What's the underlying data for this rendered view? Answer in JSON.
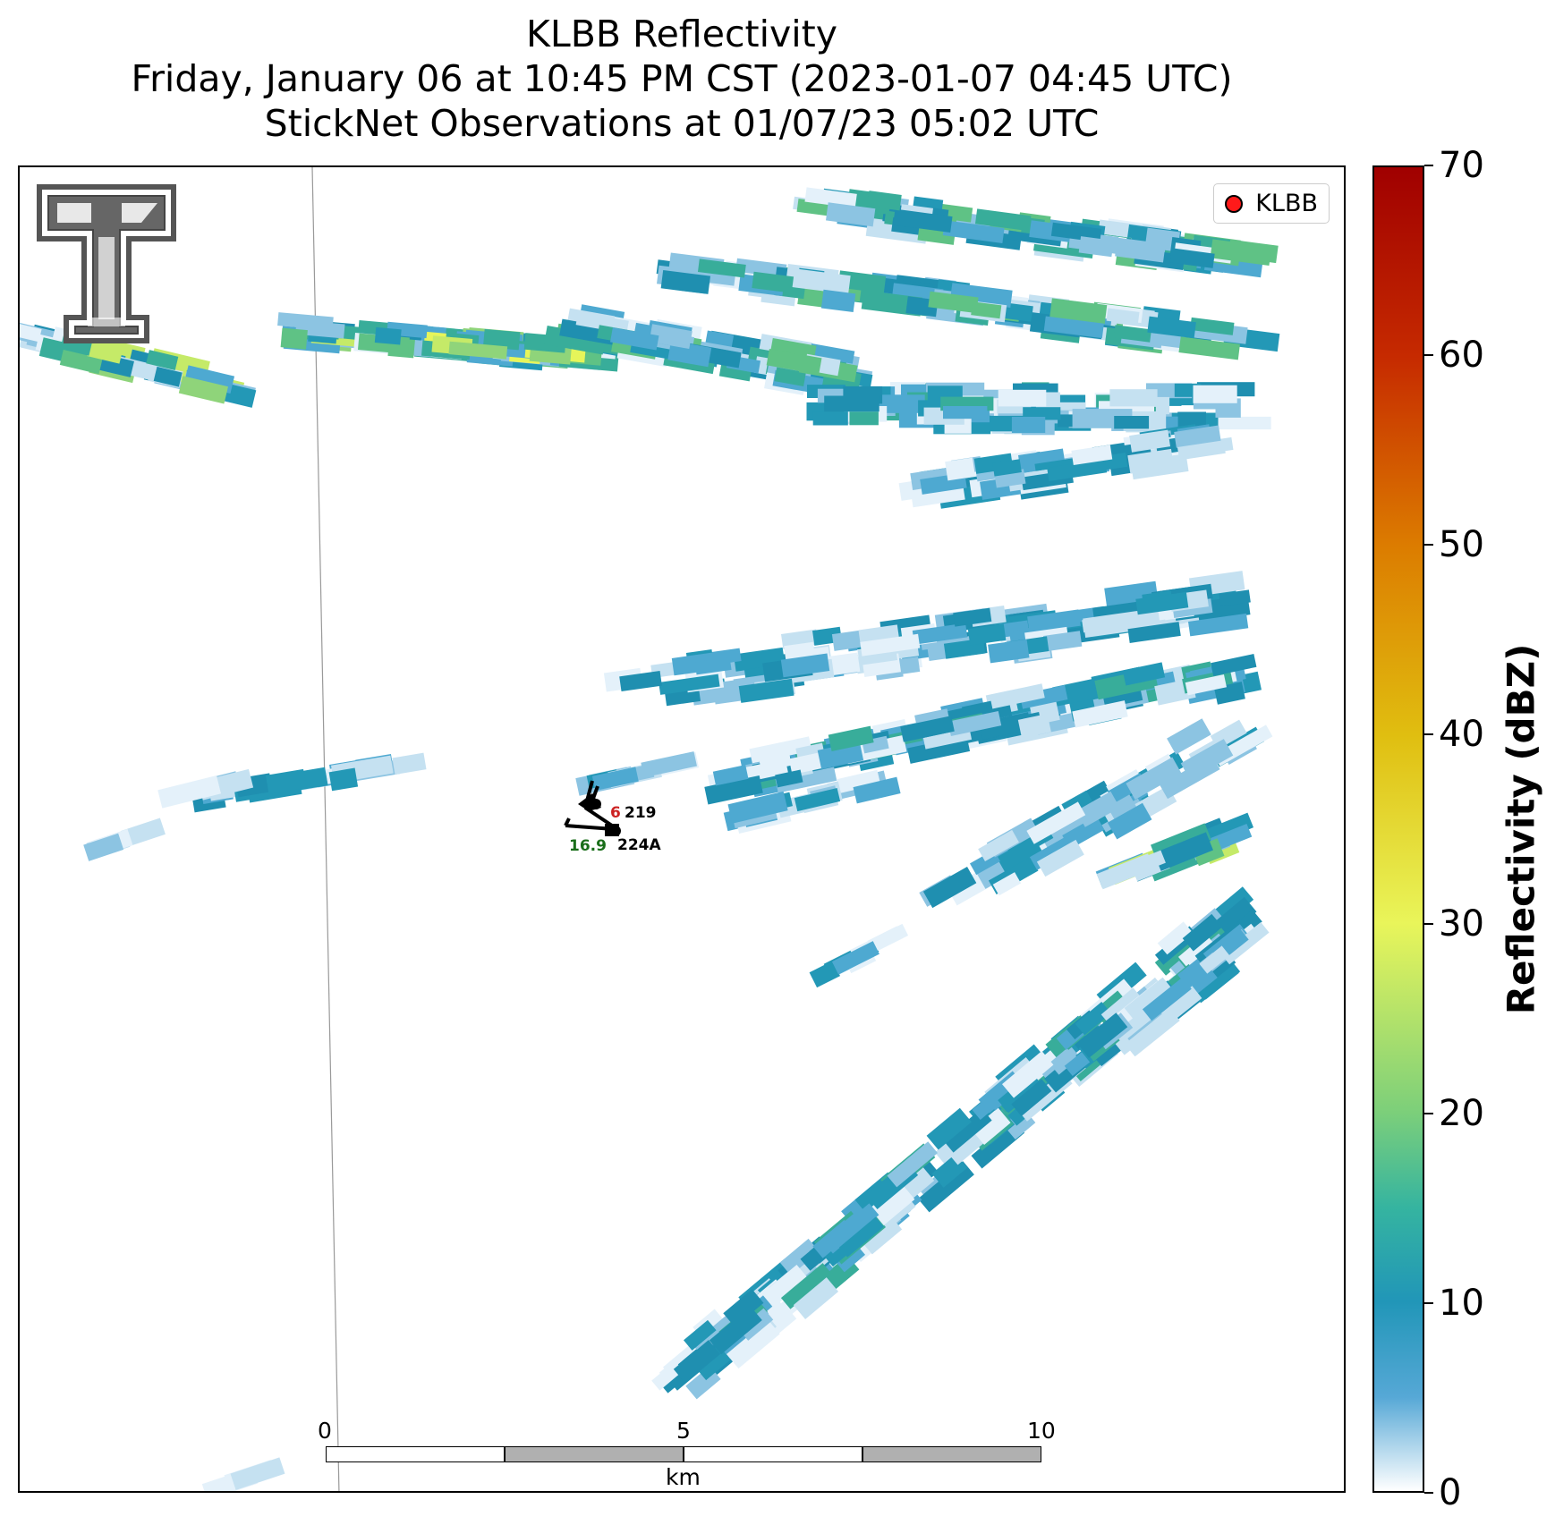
{
  "title": {
    "line1": "KLBB Reflectivity",
    "line2": "Friday, January 06 at 10:45 PM CST (2023-01-07 04:45 UTC)",
    "line3": "StickNet Observations at 01/07/23 05:02 UTC"
  },
  "legend": {
    "label": "KLBB",
    "marker_color": "#ff1a1a"
  },
  "colorbar": {
    "label": "Reflectivity (dBZ)",
    "min": 0,
    "max": 70,
    "ticks": [
      "0",
      "10",
      "20",
      "30",
      "40",
      "50",
      "60",
      "70"
    ],
    "stops": [
      {
        "v": 0,
        "c": "#ffffff"
      },
      {
        "v": 5,
        "c": "#56a8d6"
      },
      {
        "v": 10,
        "c": "#2196b8"
      },
      {
        "v": 15,
        "c": "#35b4a0"
      },
      {
        "v": 20,
        "c": "#7ccf7a"
      },
      {
        "v": 30,
        "c": "#e9f55a"
      },
      {
        "v": 40,
        "c": "#e0be10"
      },
      {
        "v": 50,
        "c": "#dc7c00"
      },
      {
        "v": 60,
        "c": "#c62a00"
      },
      {
        "v": 70,
        "c": "#a00000"
      }
    ]
  },
  "scalebar": {
    "labels": [
      "0",
      "5",
      "10"
    ],
    "unit": "km"
  },
  "stations": [
    {
      "id": "219",
      "temperature": "6",
      "temperature_color": "#cc2222"
    },
    {
      "id": "224A",
      "dewpoint": "16.9",
      "dewpoint_color": "#1a6e1a"
    }
  ],
  "logo": {
    "name": "texas-tech-double-t-logo"
  }
}
